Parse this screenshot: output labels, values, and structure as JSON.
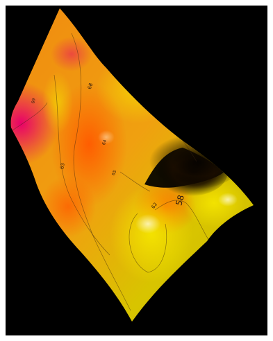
{
  "chart_data": {
    "type": "heatmap",
    "title": "",
    "xlabel": "",
    "ylabel": "",
    "grid": false,
    "legend": "none",
    "background": "#000000",
    "colormap": [
      "#e0006e",
      "#ff6a00",
      "#ffb400",
      "#e6d400",
      "#ffffff"
    ],
    "contour_labels": [
      {
        "text": "68",
        "value": 68
      },
      {
        "text": "69",
        "value": 69
      },
      {
        "text": "63",
        "value": 63
      },
      {
        "text": "64",
        "value": 64
      },
      {
        "text": "65",
        "value": 65
      },
      {
        "text": "62",
        "value": 62
      },
      {
        "text": "58",
        "value": 58
      }
    ]
  }
}
